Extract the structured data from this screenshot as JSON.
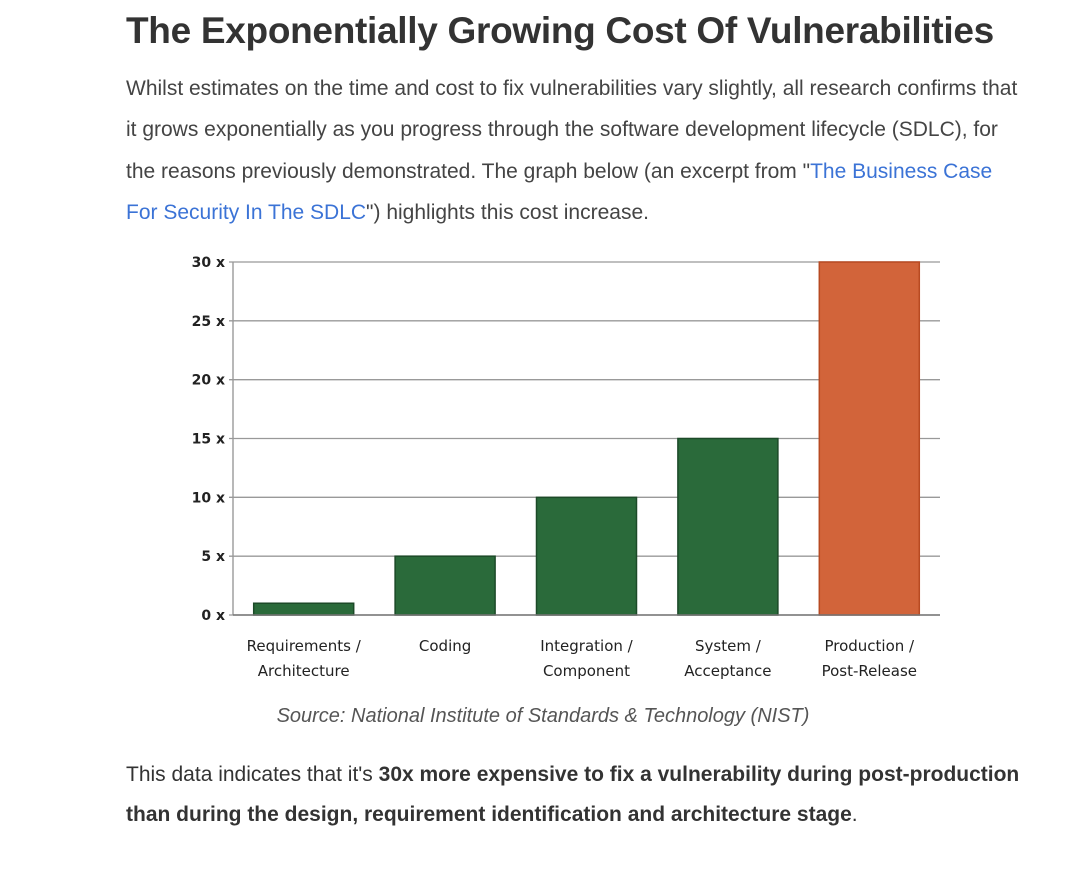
{
  "article": {
    "heading": "The Exponentially Growing Cost Of Vulnerabilities",
    "intro_before_link": "Whilst estimates on the time and cost to fix vulnerabilities vary slightly, all research confirms that it grows exponentially as you progress through the software development lifecycle (SDLC), for the reasons previously demonstrated. The graph  below (an excerpt from \"",
    "intro_link_text": "The Business Case For Security In The SDLC",
    "intro_after_link": "\") highlights this cost increase.",
    "caption": "Source: National Institute of Standards & Technology (NIST)",
    "outro_before_bold": "This data indicates that it's ",
    "outro_bold": "30x more expensive to fix a vulnerability during post-production than during the design, requirement identification and architecture stage",
    "outro_after_bold": "."
  },
  "colors": {
    "bar_green": "#2a6a3a",
    "bar_orange": "#d2643a",
    "link_blue": "#3b73d6"
  },
  "chart_data": {
    "type": "bar",
    "categories": [
      [
        "Requirements /",
        "Architecture"
      ],
      [
        "Coding"
      ],
      [
        "Integration /",
        "Component"
      ],
      [
        "System /",
        "Acceptance"
      ],
      [
        "Production /",
        "Post-Release"
      ]
    ],
    "values": [
      1,
      5,
      10,
      15,
      30
    ],
    "highlight_index": 4,
    "yticks": [
      0,
      5,
      10,
      15,
      20,
      25,
      30
    ],
    "ytick_labels": [
      "0 x",
      "5 x",
      "10 x",
      "15 x",
      "20 x",
      "25 x",
      "30 x"
    ],
    "ylim": [
      0,
      30
    ],
    "grid": true,
    "title": "",
    "xlabel": "",
    "ylabel": ""
  }
}
